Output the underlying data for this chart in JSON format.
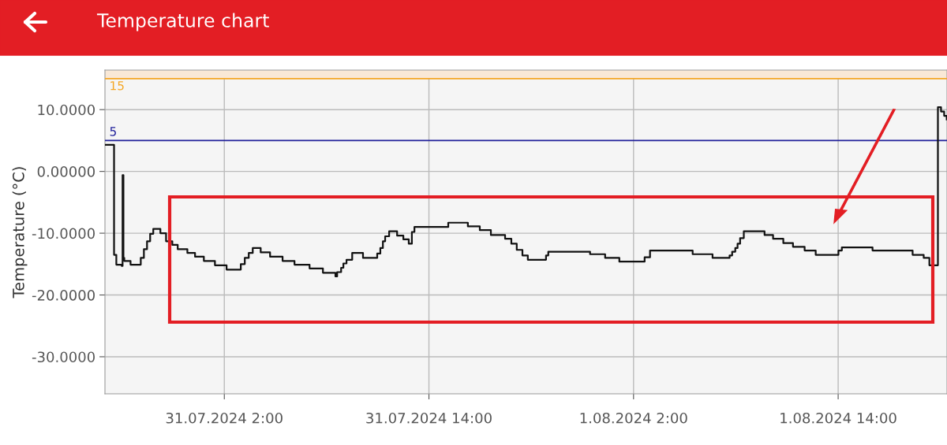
{
  "chart_data": {
    "type": "step",
    "title": "Temperature chart",
    "ylabel": "Temperature (°C)",
    "x": [
      "2024-07-30T19:01",
      "2024-07-30T19:32",
      "2024-07-30T19:40",
      "2024-07-30T19:59",
      "2024-07-30T20:02",
      "2024-07-30T20:05",
      "2024-07-30T20:08",
      "2024-07-30T20:30",
      "2024-07-30T21:06",
      "2024-07-30T21:17",
      "2024-07-30T21:28",
      "2024-07-30T21:39",
      "2024-07-30T21:50",
      "2024-07-30T22:15",
      "2024-07-30T22:35",
      "2024-07-30T22:57",
      "2024-07-30T23:16",
      "2024-07-30T23:50",
      "2024-07-31T00:17",
      "2024-07-31T00:48",
      "2024-07-31T01:27",
      "2024-07-31T02:08",
      "2024-07-31T02:58",
      "2024-07-31T03:12",
      "2024-07-31T03:26",
      "2024-07-31T03:40",
      "2024-07-31T04:08",
      "2024-07-31T04:41",
      "2024-07-31T05:25",
      "2024-07-31T06:07",
      "2024-07-31T07:00",
      "2024-07-31T07:47",
      "2024-07-31T08:31",
      "2024-07-31T08:37",
      "2024-07-31T08:51",
      "2024-07-31T08:59",
      "2024-07-31T09:10",
      "2024-07-31T09:30",
      "2024-07-31T10:08",
      "2024-07-31T10:58",
      "2024-07-31T11:09",
      "2024-07-31T11:18",
      "2024-07-31T11:26",
      "2024-07-31T11:40",
      "2024-07-31T12:08",
      "2024-07-31T12:30",
      "2024-07-31T12:49",
      "2024-07-31T13:00",
      "2024-07-31T13:09",
      "2024-07-31T15:08",
      "2024-07-31T16:17",
      "2024-07-31T16:59",
      "2024-07-31T17:38",
      "2024-07-31T18:28",
      "2024-07-31T18:50",
      "2024-07-31T19:09",
      "2024-07-31T19:29",
      "2024-07-31T19:48",
      "2024-07-31T20:52",
      "2024-07-31T21:00",
      "2024-07-31T23:27",
      "2024-08-01T00:20",
      "2024-08-01T01:10",
      "2024-08-01T02:39",
      "2024-08-01T02:58",
      "2024-08-01T05:28",
      "2024-08-01T06:38",
      "2024-08-01T07:38",
      "2024-08-01T07:47",
      "2024-08-01T07:58",
      "2024-08-01T08:06",
      "2024-08-01T08:15",
      "2024-08-01T08:28",
      "2024-08-01T09:41",
      "2024-08-01T10:11",
      "2024-08-01T10:47",
      "2024-08-01T11:21",
      "2024-08-01T12:02",
      "2024-08-01T12:41",
      "2024-08-01T14:01",
      "2024-08-01T14:13",
      "2024-08-01T16:01",
      "2024-08-01T18:22",
      "2024-08-01T19:01",
      "2024-08-01T19:21",
      "2024-08-01T19:51",
      "2024-08-01T20:02",
      "2024-08-01T20:13",
      "2024-08-01T20:22"
    ],
    "series": [
      {
        "color": "#111111",
        "values": [
          4.3,
          -13.5,
          -15.1,
          -15.3,
          -0.6,
          -14.0,
          -14.5,
          -15.1,
          -14.0,
          -12.6,
          -11.3,
          -10.1,
          -9.3,
          -10.0,
          -11.3,
          -11.9,
          -12.6,
          -13.2,
          -13.8,
          -14.5,
          -15.2,
          -15.9,
          -15.0,
          -14.0,
          -13.2,
          -12.4,
          -13.1,
          -13.8,
          -14.5,
          -15.1,
          -15.7,
          -16.4,
          -17.0,
          -16.3,
          -15.6,
          -14.9,
          -14.3,
          -13.2,
          -14.0,
          -13.3,
          -12.4,
          -11.3,
          -10.5,
          -9.7,
          -10.4,
          -11.0,
          -11.7,
          -9.8,
          -9.0,
          -8.3,
          -8.9,
          -9.5,
          -10.3,
          -10.9,
          -11.7,
          -12.7,
          -13.6,
          -14.3,
          -13.6,
          -13.0,
          -13.4,
          -14.0,
          -14.6,
          -13.9,
          -12.8,
          -13.4,
          -14.0,
          -13.6,
          -13.0,
          -12.4,
          -11.7,
          -10.8,
          -9.7,
          -10.3,
          -10.9,
          -11.6,
          -12.2,
          -12.8,
          -13.5,
          -12.8,
          -12.3,
          -12.8,
          -13.5,
          -14.0,
          -15.2,
          10.4,
          9.7,
          9.0,
          8.4
        ]
      }
    ],
    "xlim": [
      "2024-07-30T19:00",
      "2024-08-01T20:23"
    ],
    "xticks": [
      {
        "value": "2024-07-31T02:00",
        "label": "31.07.2024 2:00"
      },
      {
        "value": "2024-07-31T14:00",
        "label": "31.07.2024 14:00"
      },
      {
        "value": "2024-08-01T02:00",
        "label": "1.08.2024 2:00"
      },
      {
        "value": "2024-08-01T14:00",
        "label": "1.08.2024 14:00"
      }
    ],
    "ylim": [
      -36,
      16.4
    ],
    "yticks": [
      {
        "value": -30,
        "label": "-30.0000"
      },
      {
        "value": -20,
        "label": "-20.0000"
      },
      {
        "value": -10,
        "label": "-10.0000"
      },
      {
        "value": 0,
        "label": "0.00000"
      },
      {
        "value": 10,
        "label": "10.0000"
      }
    ],
    "ref_lines": [
      {
        "axis": "y",
        "value": 15,
        "label": "15",
        "color": "#f5a623"
      },
      {
        "axis": "y",
        "value": 5,
        "label": "5",
        "color": "#1f1f9a"
      }
    ],
    "bands": [
      {
        "axis": "y",
        "from": 15,
        "to": 16.4,
        "color": "#f9e8d6"
      }
    ],
    "grid": true
  }
}
